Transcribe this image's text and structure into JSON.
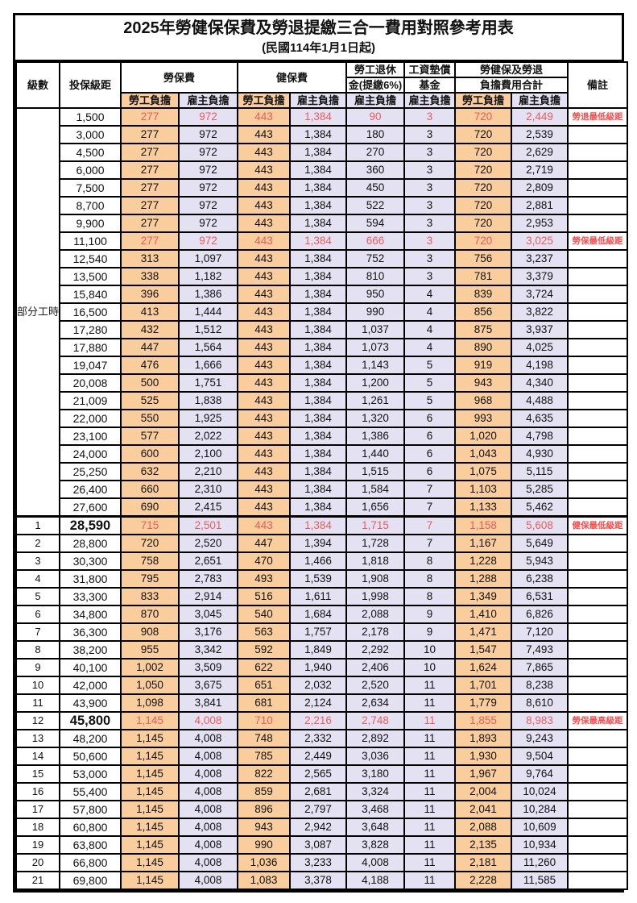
{
  "title": "2025年勞健保保費及勞退提繳三合一費用對照參考用表",
  "subtitle": "(民國114年1月1日起)",
  "header": {
    "level": "級數",
    "bracket": "投保級距",
    "labor_insurance": "勞保費",
    "health_insurance": "健保費",
    "pension_line1": "勞工退休",
    "pension_line2": "金(提繳6%)",
    "wage_fund_line1": "工資墊償",
    "wage_fund_line2": "基金",
    "total_line1": "勞健保及勞退",
    "total_line2": "負擔費用合計",
    "remark": "備註",
    "employee": "勞工負擔",
    "employer": "雇主負擔"
  },
  "part_time_label": "部分工時",
  "part_time_row_count": 23,
  "colors": {
    "employee_bg": "#FACD9D",
    "employer_bg": "#E4E2F2",
    "highlight_text": "#EE5B5B",
    "remark_text": "#FF4B4B",
    "border": "#000000"
  },
  "rows": [
    {
      "level": "",
      "bracket": "1,500",
      "li_emp": "277",
      "li_er": "972",
      "hi_emp": "443",
      "hi_er": "1,384",
      "pen_er": "90",
      "fund_er": "3",
      "tot_emp": "720",
      "tot_er": "2,449",
      "remark": "勞退最低級距",
      "red": true,
      "big": false,
      "thick_top": false
    },
    {
      "level": "",
      "bracket": "3,000",
      "li_emp": "277",
      "li_er": "972",
      "hi_emp": "443",
      "hi_er": "1,384",
      "pen_er": "180",
      "fund_er": "3",
      "tot_emp": "720",
      "tot_er": "2,539",
      "remark": "",
      "red": false,
      "big": false,
      "thick_top": false
    },
    {
      "level": "",
      "bracket": "4,500",
      "li_emp": "277",
      "li_er": "972",
      "hi_emp": "443",
      "hi_er": "1,384",
      "pen_er": "270",
      "fund_er": "3",
      "tot_emp": "720",
      "tot_er": "2,629",
      "remark": "",
      "red": false,
      "big": false,
      "thick_top": false
    },
    {
      "level": "",
      "bracket": "6,000",
      "li_emp": "277",
      "li_er": "972",
      "hi_emp": "443",
      "hi_er": "1,384",
      "pen_er": "360",
      "fund_er": "3",
      "tot_emp": "720",
      "tot_er": "2,719",
      "remark": "",
      "red": false,
      "big": false,
      "thick_top": false
    },
    {
      "level": "",
      "bracket": "7,500",
      "li_emp": "277",
      "li_er": "972",
      "hi_emp": "443",
      "hi_er": "1,384",
      "pen_er": "450",
      "fund_er": "3",
      "tot_emp": "720",
      "tot_er": "2,809",
      "remark": "",
      "red": false,
      "big": false,
      "thick_top": false
    },
    {
      "level": "",
      "bracket": "8,700",
      "li_emp": "277",
      "li_er": "972",
      "hi_emp": "443",
      "hi_er": "1,384",
      "pen_er": "522",
      "fund_er": "3",
      "tot_emp": "720",
      "tot_er": "2,881",
      "remark": "",
      "red": false,
      "big": false,
      "thick_top": false
    },
    {
      "level": "",
      "bracket": "9,900",
      "li_emp": "277",
      "li_er": "972",
      "hi_emp": "443",
      "hi_er": "1,384",
      "pen_er": "594",
      "fund_er": "3",
      "tot_emp": "720",
      "tot_er": "2,953",
      "remark": "",
      "red": false,
      "big": false,
      "thick_top": false
    },
    {
      "level": "",
      "bracket": "11,100",
      "li_emp": "277",
      "li_er": "972",
      "hi_emp": "443",
      "hi_er": "1,384",
      "pen_er": "666",
      "fund_er": "3",
      "tot_emp": "720",
      "tot_er": "3,025",
      "remark": "勞保最低級距",
      "red": true,
      "big": false,
      "thick_top": false
    },
    {
      "level": "",
      "bracket": "12,540",
      "li_emp": "313",
      "li_er": "1,097",
      "hi_emp": "443",
      "hi_er": "1,384",
      "pen_er": "752",
      "fund_er": "3",
      "tot_emp": "756",
      "tot_er": "3,237",
      "remark": "",
      "red": false,
      "big": false,
      "thick_top": false
    },
    {
      "level": "",
      "bracket": "13,500",
      "li_emp": "338",
      "li_er": "1,182",
      "hi_emp": "443",
      "hi_er": "1,384",
      "pen_er": "810",
      "fund_er": "3",
      "tot_emp": "781",
      "tot_er": "3,379",
      "remark": "",
      "red": false,
      "big": false,
      "thick_top": false
    },
    {
      "level": "",
      "bracket": "15,840",
      "li_emp": "396",
      "li_er": "1,386",
      "hi_emp": "443",
      "hi_er": "1,384",
      "pen_er": "950",
      "fund_er": "4",
      "tot_emp": "839",
      "tot_er": "3,724",
      "remark": "",
      "red": false,
      "big": false,
      "thick_top": false
    },
    {
      "level": "",
      "bracket": "16,500",
      "li_emp": "413",
      "li_er": "1,444",
      "hi_emp": "443",
      "hi_er": "1,384",
      "pen_er": "990",
      "fund_er": "4",
      "tot_emp": "856",
      "tot_er": "3,822",
      "remark": "",
      "red": false,
      "big": false,
      "thick_top": false
    },
    {
      "level": "",
      "bracket": "17,280",
      "li_emp": "432",
      "li_er": "1,512",
      "hi_emp": "443",
      "hi_er": "1,384",
      "pen_er": "1,037",
      "fund_er": "4",
      "tot_emp": "875",
      "tot_er": "3,937",
      "remark": "",
      "red": false,
      "big": false,
      "thick_top": false
    },
    {
      "level": "",
      "bracket": "17,880",
      "li_emp": "447",
      "li_er": "1,564",
      "hi_emp": "443",
      "hi_er": "1,384",
      "pen_er": "1,073",
      "fund_er": "4",
      "tot_emp": "890",
      "tot_er": "4,025",
      "remark": "",
      "red": false,
      "big": false,
      "thick_top": false
    },
    {
      "level": "",
      "bracket": "19,047",
      "li_emp": "476",
      "li_er": "1,666",
      "hi_emp": "443",
      "hi_er": "1,384",
      "pen_er": "1,143",
      "fund_er": "5",
      "tot_emp": "919",
      "tot_er": "4,198",
      "remark": "",
      "red": false,
      "big": false,
      "thick_top": false
    },
    {
      "level": "",
      "bracket": "20,008",
      "li_emp": "500",
      "li_er": "1,751",
      "hi_emp": "443",
      "hi_er": "1,384",
      "pen_er": "1,200",
      "fund_er": "5",
      "tot_emp": "943",
      "tot_er": "4,340",
      "remark": "",
      "red": false,
      "big": false,
      "thick_top": false
    },
    {
      "level": "",
      "bracket": "21,009",
      "li_emp": "525",
      "li_er": "1,838",
      "hi_emp": "443",
      "hi_er": "1,384",
      "pen_er": "1,261",
      "fund_er": "5",
      "tot_emp": "968",
      "tot_er": "4,488",
      "remark": "",
      "red": false,
      "big": false,
      "thick_top": false
    },
    {
      "level": "",
      "bracket": "22,000",
      "li_emp": "550",
      "li_er": "1,925",
      "hi_emp": "443",
      "hi_er": "1,384",
      "pen_er": "1,320",
      "fund_er": "6",
      "tot_emp": "993",
      "tot_er": "4,635",
      "remark": "",
      "red": false,
      "big": false,
      "thick_top": false
    },
    {
      "level": "",
      "bracket": "23,100",
      "li_emp": "577",
      "li_er": "2,022",
      "hi_emp": "443",
      "hi_er": "1,384",
      "pen_er": "1,386",
      "fund_er": "6",
      "tot_emp": "1,020",
      "tot_er": "4,798",
      "remark": "",
      "red": false,
      "big": false,
      "thick_top": false
    },
    {
      "level": "",
      "bracket": "24,000",
      "li_emp": "600",
      "li_er": "2,100",
      "hi_emp": "443",
      "hi_er": "1,384",
      "pen_er": "1,440",
      "fund_er": "6",
      "tot_emp": "1,043",
      "tot_er": "4,930",
      "remark": "",
      "red": false,
      "big": false,
      "thick_top": false
    },
    {
      "level": "",
      "bracket": "25,250",
      "li_emp": "632",
      "li_er": "2,210",
      "hi_emp": "443",
      "hi_er": "1,384",
      "pen_er": "1,515",
      "fund_er": "6",
      "tot_emp": "1,075",
      "tot_er": "5,115",
      "remark": "",
      "red": false,
      "big": false,
      "thick_top": false
    },
    {
      "level": "",
      "bracket": "26,400",
      "li_emp": "660",
      "li_er": "2,310",
      "hi_emp": "443",
      "hi_er": "1,384",
      "pen_er": "1,584",
      "fund_er": "7",
      "tot_emp": "1,103",
      "tot_er": "5,285",
      "remark": "",
      "red": false,
      "big": false,
      "thick_top": false
    },
    {
      "level": "",
      "bracket": "27,600",
      "li_emp": "690",
      "li_er": "2,415",
      "hi_emp": "443",
      "hi_er": "1,384",
      "pen_er": "1,656",
      "fund_er": "7",
      "tot_emp": "1,133",
      "tot_er": "5,462",
      "remark": "",
      "red": false,
      "big": false,
      "thick_top": false
    },
    {
      "level": "1",
      "bracket": "28,590",
      "li_emp": "715",
      "li_er": "2,501",
      "hi_emp": "443",
      "hi_er": "1,384",
      "pen_er": "1,715",
      "fund_er": "7",
      "tot_emp": "1,158",
      "tot_er": "5,608",
      "remark": "健保最低級距",
      "red": true,
      "big": true,
      "thick_top": true
    },
    {
      "level": "2",
      "bracket": "28,800",
      "li_emp": "720",
      "li_er": "2,520",
      "hi_emp": "447",
      "hi_er": "1,394",
      "pen_er": "1,728",
      "fund_er": "7",
      "tot_emp": "1,167",
      "tot_er": "5,649",
      "remark": "",
      "red": false,
      "big": false,
      "thick_top": false
    },
    {
      "level": "3",
      "bracket": "30,300",
      "li_emp": "758",
      "li_er": "2,651",
      "hi_emp": "470",
      "hi_er": "1,466",
      "pen_er": "1,818",
      "fund_er": "8",
      "tot_emp": "1,228",
      "tot_er": "5,943",
      "remark": "",
      "red": false,
      "big": false,
      "thick_top": false
    },
    {
      "level": "4",
      "bracket": "31,800",
      "li_emp": "795",
      "li_er": "2,783",
      "hi_emp": "493",
      "hi_er": "1,539",
      "pen_er": "1,908",
      "fund_er": "8",
      "tot_emp": "1,288",
      "tot_er": "6,238",
      "remark": "",
      "red": false,
      "big": false,
      "thick_top": false
    },
    {
      "level": "5",
      "bracket": "33,300",
      "li_emp": "833",
      "li_er": "2,914",
      "hi_emp": "516",
      "hi_er": "1,611",
      "pen_er": "1,998",
      "fund_er": "8",
      "tot_emp": "1,349",
      "tot_er": "6,531",
      "remark": "",
      "red": false,
      "big": false,
      "thick_top": false
    },
    {
      "level": "6",
      "bracket": "34,800",
      "li_emp": "870",
      "li_er": "3,045",
      "hi_emp": "540",
      "hi_er": "1,684",
      "pen_er": "2,088",
      "fund_er": "9",
      "tot_emp": "1,410",
      "tot_er": "6,826",
      "remark": "",
      "red": false,
      "big": false,
      "thick_top": false
    },
    {
      "level": "7",
      "bracket": "36,300",
      "li_emp": "908",
      "li_er": "3,176",
      "hi_emp": "563",
      "hi_er": "1,757",
      "pen_er": "2,178",
      "fund_er": "9",
      "tot_emp": "1,471",
      "tot_er": "7,120",
      "remark": "",
      "red": false,
      "big": false,
      "thick_top": false
    },
    {
      "level": "8",
      "bracket": "38,200",
      "li_emp": "955",
      "li_er": "3,342",
      "hi_emp": "592",
      "hi_er": "1,849",
      "pen_er": "2,292",
      "fund_er": "10",
      "tot_emp": "1,547",
      "tot_er": "7,493",
      "remark": "",
      "red": false,
      "big": false,
      "thick_top": false
    },
    {
      "level": "9",
      "bracket": "40,100",
      "li_emp": "1,002",
      "li_er": "3,509",
      "hi_emp": "622",
      "hi_er": "1,940",
      "pen_er": "2,406",
      "fund_er": "10",
      "tot_emp": "1,624",
      "tot_er": "7,865",
      "remark": "",
      "red": false,
      "big": false,
      "thick_top": false
    },
    {
      "level": "10",
      "bracket": "42,000",
      "li_emp": "1,050",
      "li_er": "3,675",
      "hi_emp": "651",
      "hi_er": "2,032",
      "pen_er": "2,520",
      "fund_er": "11",
      "tot_emp": "1,701",
      "tot_er": "8,238",
      "remark": "",
      "red": false,
      "big": false,
      "thick_top": false
    },
    {
      "level": "11",
      "bracket": "43,900",
      "li_emp": "1,098",
      "li_er": "3,841",
      "hi_emp": "681",
      "hi_er": "2,124",
      "pen_er": "2,634",
      "fund_er": "11",
      "tot_emp": "1,779",
      "tot_er": "8,610",
      "remark": "",
      "red": false,
      "big": false,
      "thick_top": false
    },
    {
      "level": "12",
      "bracket": "45,800",
      "li_emp": "1,145",
      "li_er": "4,008",
      "hi_emp": "710",
      "hi_er": "2,216",
      "pen_er": "2,748",
      "fund_er": "11",
      "tot_emp": "1,855",
      "tot_er": "8,983",
      "remark": "勞保最高級距",
      "red": true,
      "big": true,
      "thick_top": false
    },
    {
      "level": "13",
      "bracket": "48,200",
      "li_emp": "1,145",
      "li_er": "4,008",
      "hi_emp": "748",
      "hi_er": "2,332",
      "pen_er": "2,892",
      "fund_er": "11",
      "tot_emp": "1,893",
      "tot_er": "9,243",
      "remark": "",
      "red": false,
      "big": false,
      "thick_top": false
    },
    {
      "level": "14",
      "bracket": "50,600",
      "li_emp": "1,145",
      "li_er": "4,008",
      "hi_emp": "785",
      "hi_er": "2,449",
      "pen_er": "3,036",
      "fund_er": "11",
      "tot_emp": "1,930",
      "tot_er": "9,504",
      "remark": "",
      "red": false,
      "big": false,
      "thick_top": false
    },
    {
      "level": "15",
      "bracket": "53,000",
      "li_emp": "1,145",
      "li_er": "4,008",
      "hi_emp": "822",
      "hi_er": "2,565",
      "pen_er": "3,180",
      "fund_er": "11",
      "tot_emp": "1,967",
      "tot_er": "9,764",
      "remark": "",
      "red": false,
      "big": false,
      "thick_top": false
    },
    {
      "level": "16",
      "bracket": "55,400",
      "li_emp": "1,145",
      "li_er": "4,008",
      "hi_emp": "859",
      "hi_er": "2,681",
      "pen_er": "3,324",
      "fund_er": "11",
      "tot_emp": "2,004",
      "tot_er": "10,024",
      "remark": "",
      "red": false,
      "big": false,
      "thick_top": false
    },
    {
      "level": "17",
      "bracket": "57,800",
      "li_emp": "1,145",
      "li_er": "4,008",
      "hi_emp": "896",
      "hi_er": "2,797",
      "pen_er": "3,468",
      "fund_er": "11",
      "tot_emp": "2,041",
      "tot_er": "10,284",
      "remark": "",
      "red": false,
      "big": false,
      "thick_top": false
    },
    {
      "level": "18",
      "bracket": "60,800",
      "li_emp": "1,145",
      "li_er": "4,008",
      "hi_emp": "943",
      "hi_er": "2,942",
      "pen_er": "3,648",
      "fund_er": "11",
      "tot_emp": "2,088",
      "tot_er": "10,609",
      "remark": "",
      "red": false,
      "big": false,
      "thick_top": false
    },
    {
      "level": "19",
      "bracket": "63,800",
      "li_emp": "1,145",
      "li_er": "4,008",
      "hi_emp": "990",
      "hi_er": "3,087",
      "pen_er": "3,828",
      "fund_er": "11",
      "tot_emp": "2,135",
      "tot_er": "10,934",
      "remark": "",
      "red": false,
      "big": false,
      "thick_top": false
    },
    {
      "level": "20",
      "bracket": "66,800",
      "li_emp": "1,145",
      "li_er": "4,008",
      "hi_emp": "1,036",
      "hi_er": "3,233",
      "pen_er": "4,008",
      "fund_er": "11",
      "tot_emp": "2,181",
      "tot_er": "11,260",
      "remark": "",
      "red": false,
      "big": false,
      "thick_top": false
    },
    {
      "level": "21",
      "bracket": "69,800",
      "li_emp": "1,145",
      "li_er": "4,008",
      "hi_emp": "1,083",
      "hi_er": "3,378",
      "pen_er": "4,188",
      "fund_er": "11",
      "tot_emp": "2,228",
      "tot_er": "11,585",
      "remark": "",
      "red": false,
      "big": false,
      "thick_top": false
    }
  ]
}
